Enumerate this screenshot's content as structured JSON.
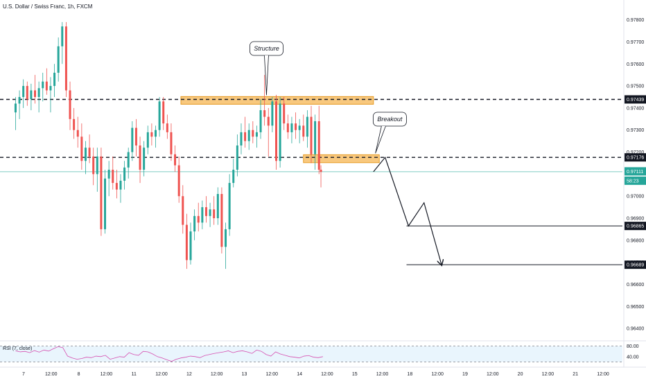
{
  "chart_title": "U.S. Dollar / Swiss Franc, 1h, FXCM",
  "colors": {
    "up": "#26a69a",
    "down": "#ef5350",
    "zone_fill": "#f5b553",
    "zone_stroke": "#e69b24",
    "current_line": "#26a69a",
    "rsi_line": "#d64eb0",
    "rsi_band": "#e3f2fd"
  },
  "chart_data": {
    "type": "candlestick",
    "ylim": [
      0.9635,
      0.9789
    ],
    "y_ticks": [
      "0.97800",
      "0.97700",
      "0.97600",
      "0.97500",
      "0.97400",
      "0.97300",
      "0.97200",
      "0.97000",
      "0.96900",
      "0.96800",
      "0.96700",
      "0.96600",
      "0.96500",
      "0.96400"
    ],
    "x_ticks": [
      "7",
      "12:00",
      "8",
      "12:00",
      "11",
      "12:00",
      "12",
      "12:00",
      "13",
      "12:00",
      "14",
      "12:00",
      "15",
      "12:00",
      "18",
      "12:00",
      "19",
      "12:00",
      "20",
      "12:00",
      "21",
      "12:00"
    ],
    "price_tags": [
      {
        "label": "0.97439",
        "value": 0.97439,
        "style": "level"
      },
      {
        "label": "0.97176",
        "value": 0.97176,
        "style": "level"
      },
      {
        "label": "0.97111",
        "value": 0.97111,
        "style": "current"
      },
      {
        "label": "58:23",
        "value": 0.97111,
        "style": "countdown"
      },
      {
        "label": "0.96865",
        "value": 0.96865,
        "style": "level"
      },
      {
        "label": "0.96689",
        "value": 0.96689,
        "style": "level"
      }
    ],
    "zones": [
      {
        "label": "Structure",
        "from_day": 10.65,
        "to_day": 15.6,
        "low": 0.97417,
        "high": 0.97452
      },
      {
        "label": "Breakout",
        "from_day": 13.8,
        "to_day": 15.75,
        "low": 0.97152,
        "high": 0.97188
      }
    ],
    "projection": [
      {
        "day": 15.6,
        "price": 0.97111
      },
      {
        "day": 15.9,
        "price": 0.97176
      },
      {
        "day": 16.5,
        "price": 0.96865
      },
      {
        "day": 16.9,
        "price": 0.9697
      },
      {
        "day": 17.35,
        "price": 0.96689
      }
    ],
    "candles": [
      {
        "day": 6.4,
        "o": 0.9738,
        "h": 0.9745,
        "l": 0.973,
        "c": 0.9742
      },
      {
        "day": 6.5,
        "o": 0.9742,
        "h": 0.9748,
        "l": 0.9735,
        "c": 0.9745
      },
      {
        "day": 6.6,
        "o": 0.9745,
        "h": 0.9753,
        "l": 0.974,
        "c": 0.975
      },
      {
        "day": 6.7,
        "o": 0.975,
        "h": 0.9752,
        "l": 0.9741,
        "c": 0.9744
      },
      {
        "day": 6.8,
        "o": 0.9744,
        "h": 0.9751,
        "l": 0.9739,
        "c": 0.9748
      },
      {
        "day": 6.9,
        "o": 0.9748,
        "h": 0.9755,
        "l": 0.9742,
        "c": 0.9745
      },
      {
        "day": 7.0,
        "o": 0.9745,
        "h": 0.9752,
        "l": 0.9738,
        "c": 0.9749
      },
      {
        "day": 7.1,
        "o": 0.9749,
        "h": 0.9756,
        "l": 0.9743,
        "c": 0.9752
      },
      {
        "day": 7.2,
        "o": 0.9752,
        "h": 0.9758,
        "l": 0.9746,
        "c": 0.9748
      },
      {
        "day": 7.3,
        "o": 0.9748,
        "h": 0.9754,
        "l": 0.9738,
        "c": 0.975
      },
      {
        "day": 7.4,
        "o": 0.975,
        "h": 0.976,
        "l": 0.9745,
        "c": 0.9756
      },
      {
        "day": 7.5,
        "o": 0.9756,
        "h": 0.9772,
        "l": 0.9752,
        "c": 0.9768
      },
      {
        "day": 7.6,
        "o": 0.9768,
        "h": 0.9779,
        "l": 0.976,
        "c": 0.9777
      },
      {
        "day": 7.7,
        "o": 0.9777,
        "h": 0.9779,
        "l": 0.9745,
        "c": 0.9748
      },
      {
        "day": 7.8,
        "o": 0.9748,
        "h": 0.9752,
        "l": 0.973,
        "c": 0.9735
      },
      {
        "day": 7.9,
        "o": 0.9735,
        "h": 0.974,
        "l": 0.9726,
        "c": 0.973
      },
      {
        "day": 8.0,
        "o": 0.973,
        "h": 0.9736,
        "l": 0.9722,
        "c": 0.9727
      },
      {
        "day": 8.1,
        "o": 0.9727,
        "h": 0.9733,
        "l": 0.9712,
        "c": 0.9716
      },
      {
        "day": 8.2,
        "o": 0.9716,
        "h": 0.9725,
        "l": 0.971,
        "c": 0.9722
      },
      {
        "day": 8.3,
        "o": 0.9722,
        "h": 0.9728,
        "l": 0.9715,
        "c": 0.9718
      },
      {
        "day": 8.4,
        "o": 0.9718,
        "h": 0.9722,
        "l": 0.9705,
        "c": 0.971
      },
      {
        "day": 8.5,
        "o": 0.971,
        "h": 0.9722,
        "l": 0.9702,
        "c": 0.9718
      },
      {
        "day": 8.6,
        "o": 0.9718,
        "h": 0.9722,
        "l": 0.9682,
        "c": 0.9685
      },
      {
        "day": 8.7,
        "o": 0.9685,
        "h": 0.9712,
        "l": 0.9683,
        "c": 0.9708
      },
      {
        "day": 8.8,
        "o": 0.9708,
        "h": 0.9716,
        "l": 0.97,
        "c": 0.9712
      },
      {
        "day": 8.9,
        "o": 0.9712,
        "h": 0.9718,
        "l": 0.9703,
        "c": 0.9706
      },
      {
        "day": 9.0,
        "o": 0.9706,
        "h": 0.9712,
        "l": 0.9699,
        "c": 0.9703
      },
      {
        "day": 9.1,
        "o": 0.9703,
        "h": 0.971,
        "l": 0.9697,
        "c": 0.9707
      },
      {
        "day": 9.2,
        "o": 0.9707,
        "h": 0.9716,
        "l": 0.9703,
        "c": 0.9713
      },
      {
        "day": 9.3,
        "o": 0.9713,
        "h": 0.9722,
        "l": 0.9708,
        "c": 0.972
      },
      {
        "day": 9.4,
        "o": 0.972,
        "h": 0.9734,
        "l": 0.9716,
        "c": 0.9731
      },
      {
        "day": 9.5,
        "o": 0.9731,
        "h": 0.9735,
        "l": 0.9718,
        "c": 0.9723
      },
      {
        "day": 9.6,
        "o": 0.9723,
        "h": 0.9727,
        "l": 0.9706,
        "c": 0.9712
      },
      {
        "day": 9.7,
        "o": 0.9712,
        "h": 0.9725,
        "l": 0.9709,
        "c": 0.9722
      },
      {
        "day": 9.8,
        "o": 0.9722,
        "h": 0.9732,
        "l": 0.9719,
        "c": 0.9729
      },
      {
        "day": 9.9,
        "o": 0.9729,
        "h": 0.9733,
        "l": 0.9723,
        "c": 0.9727
      },
      {
        "day": 10.0,
        "o": 0.9727,
        "h": 0.9732,
        "l": 0.9722,
        "c": 0.973
      },
      {
        "day": 10.1,
        "o": 0.973,
        "h": 0.9745,
        "l": 0.9727,
        "c": 0.9743
      },
      {
        "day": 10.2,
        "o": 0.9743,
        "h": 0.9745,
        "l": 0.973,
        "c": 0.9733
      },
      {
        "day": 10.3,
        "o": 0.9733,
        "h": 0.9737,
        "l": 0.9726,
        "c": 0.9729
      },
      {
        "day": 10.4,
        "o": 0.9729,
        "h": 0.9733,
        "l": 0.9716,
        "c": 0.9719
      },
      {
        "day": 10.5,
        "o": 0.9719,
        "h": 0.9723,
        "l": 0.9711,
        "c": 0.9714
      },
      {
        "day": 10.6,
        "o": 0.9714,
        "h": 0.9718,
        "l": 0.9697,
        "c": 0.97
      },
      {
        "day": 10.7,
        "o": 0.97,
        "h": 0.9705,
        "l": 0.9683,
        "c": 0.9687
      },
      {
        "day": 10.8,
        "o": 0.9687,
        "h": 0.9692,
        "l": 0.9667,
        "c": 0.9671
      },
      {
        "day": 10.9,
        "o": 0.9671,
        "h": 0.9688,
        "l": 0.9669,
        "c": 0.9684
      },
      {
        "day": 11.0,
        "o": 0.9684,
        "h": 0.9694,
        "l": 0.968,
        "c": 0.9691
      },
      {
        "day": 11.1,
        "o": 0.9691,
        "h": 0.9697,
        "l": 0.9684,
        "c": 0.9688
      },
      {
        "day": 11.2,
        "o": 0.9688,
        "h": 0.9698,
        "l": 0.9685,
        "c": 0.9695
      },
      {
        "day": 11.3,
        "o": 0.9695,
        "h": 0.97,
        "l": 0.9688,
        "c": 0.9691
      },
      {
        "day": 11.4,
        "o": 0.9691,
        "h": 0.9697,
        "l": 0.9686,
        "c": 0.9694
      },
      {
        "day": 11.5,
        "o": 0.9694,
        "h": 0.97,
        "l": 0.9687,
        "c": 0.969
      },
      {
        "day": 11.6,
        "o": 0.969,
        "h": 0.9704,
        "l": 0.9687,
        "c": 0.9701
      },
      {
        "day": 11.7,
        "o": 0.9701,
        "h": 0.9704,
        "l": 0.9674,
        "c": 0.9677
      },
      {
        "day": 11.8,
        "o": 0.9677,
        "h": 0.9688,
        "l": 0.9667,
        "c": 0.9685
      },
      {
        "day": 11.9,
        "o": 0.9685,
        "h": 0.971,
        "l": 0.9682,
        "c": 0.9706
      },
      {
        "day": 12.0,
        "o": 0.9706,
        "h": 0.9717,
        "l": 0.9704,
        "c": 0.9712
      },
      {
        "day": 12.1,
        "o": 0.9712,
        "h": 0.9728,
        "l": 0.9709,
        "c": 0.9723
      },
      {
        "day": 12.2,
        "o": 0.9723,
        "h": 0.9733,
        "l": 0.9719,
        "c": 0.9729
      },
      {
        "day": 12.3,
        "o": 0.9729,
        "h": 0.9736,
        "l": 0.9722,
        "c": 0.9725
      },
      {
        "day": 12.4,
        "o": 0.9725,
        "h": 0.9733,
        "l": 0.9721,
        "c": 0.973
      },
      {
        "day": 12.5,
        "o": 0.973,
        "h": 0.9734,
        "l": 0.9724,
        "c": 0.9727
      },
      {
        "day": 12.6,
        "o": 0.9727,
        "h": 0.9732,
        "l": 0.9722,
        "c": 0.9729
      },
      {
        "day": 12.7,
        "o": 0.9729,
        "h": 0.9744,
        "l": 0.9726,
        "c": 0.9739
      },
      {
        "day": 12.8,
        "o": 0.9739,
        "h": 0.9755,
        "l": 0.9732,
        "c": 0.9736
      },
      {
        "day": 12.9,
        "o": 0.9736,
        "h": 0.974,
        "l": 0.9718,
        "c": 0.9732
      },
      {
        "day": 13.0,
        "o": 0.9732,
        "h": 0.9745,
        "l": 0.9729,
        "c": 0.9743
      },
      {
        "day": 13.1,
        "o": 0.9743,
        "h": 0.9746,
        "l": 0.9712,
        "c": 0.9716
      },
      {
        "day": 13.2,
        "o": 0.9716,
        "h": 0.9745,
        "l": 0.9713,
        "c": 0.9742
      },
      {
        "day": 13.3,
        "o": 0.9742,
        "h": 0.9745,
        "l": 0.973,
        "c": 0.9733
      },
      {
        "day": 13.4,
        "o": 0.9733,
        "h": 0.9737,
        "l": 0.9726,
        "c": 0.9729
      },
      {
        "day": 13.5,
        "o": 0.9729,
        "h": 0.9736,
        "l": 0.9724,
        "c": 0.9733
      },
      {
        "day": 13.6,
        "o": 0.9733,
        "h": 0.9738,
        "l": 0.9726,
        "c": 0.973
      },
      {
        "day": 13.7,
        "o": 0.973,
        "h": 0.9735,
        "l": 0.9724,
        "c": 0.9732
      },
      {
        "day": 13.8,
        "o": 0.9732,
        "h": 0.9737,
        "l": 0.9725,
        "c": 0.9727
      },
      {
        "day": 13.9,
        "o": 0.9727,
        "h": 0.9739,
        "l": 0.9722,
        "c": 0.9736
      },
      {
        "day": 14.0,
        "o": 0.9736,
        "h": 0.9741,
        "l": 0.9715,
        "c": 0.9719
      },
      {
        "day": 14.1,
        "o": 0.9719,
        "h": 0.9737,
        "l": 0.9712,
        "c": 0.9734
      },
      {
        "day": 14.2,
        "o": 0.9734,
        "h": 0.9741,
        "l": 0.971,
        "c": 0.9712
      },
      {
        "day": 14.25,
        "o": 0.9712,
        "h": 0.9714,
        "l": 0.9704,
        "c": 0.9711
      }
    ],
    "rsi": {
      "label": "RSI (7, close)",
      "upper": 80,
      "lower": 20,
      "y_ticks": [
        "80.00",
        "40.00"
      ],
      "values": [
        62,
        58,
        60,
        55,
        63,
        57,
        65,
        61,
        70,
        78,
        74,
        42,
        35,
        30,
        33,
        38,
        36,
        42,
        40,
        45,
        30,
        35,
        40,
        38,
        55,
        48,
        45,
        60,
        58,
        50,
        40,
        35,
        28,
        22,
        30,
        35,
        38,
        42,
        40,
        36,
        44,
        48,
        52,
        55,
        58,
        62,
        55,
        60,
        62,
        58,
        52,
        65,
        60,
        48,
        42,
        58,
        50,
        45,
        40,
        38,
        35,
        42,
        44,
        38,
        36,
        40
      ]
    }
  }
}
